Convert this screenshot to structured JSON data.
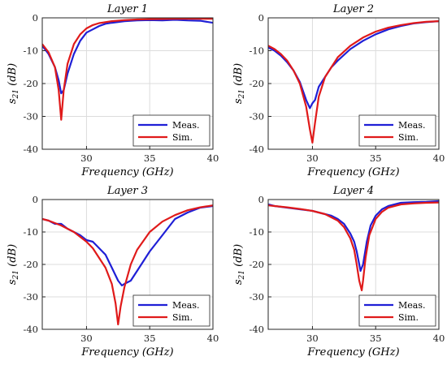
{
  "colors": {
    "meas": "#1f1fd6",
    "sim": "#e01a1a",
    "grid": "#dcdcdc",
    "axis": "#262626"
  },
  "chart_data": [
    {
      "type": "line",
      "title": "Layer 1",
      "xlabel": "Frequency (GHz)",
      "ylabel": "s21 (dB)",
      "xlim": [
        26.5,
        40
      ],
      "ylim": [
        -40,
        0
      ],
      "xticks": [
        30,
        35,
        40
      ],
      "yticks": [
        0,
        -10,
        -20,
        -30,
        -40
      ],
      "grid": true,
      "legend_position": "bottom-right",
      "series": [
        {
          "name": "Meas.",
          "x": [
            26.5,
            27,
            27.5,
            27.8,
            28,
            28.2,
            28.5,
            29,
            29.5,
            30,
            30.5,
            31,
            31.5,
            32,
            33,
            34,
            35,
            36,
            37,
            38,
            39,
            40
          ],
          "y": [
            -8.5,
            -11,
            -15,
            -19,
            -23,
            -22,
            -17,
            -11,
            -7,
            -4.5,
            -3.5,
            -2.5,
            -1.8,
            -1.5,
            -1,
            -0.8,
            -0.7,
            -0.8,
            -0.6,
            -0.8,
            -0.9,
            -1.5
          ]
        },
        {
          "name": "Sim.",
          "x": [
            26.5,
            27,
            27.5,
            27.8,
            28,
            28.2,
            28.5,
            29,
            29.5,
            30,
            30.5,
            31,
            32,
            33,
            34,
            35,
            36,
            37,
            38,
            39,
            40
          ],
          "y": [
            -8,
            -10.5,
            -15,
            -22,
            -31,
            -22,
            -14,
            -8,
            -5,
            -3.2,
            -2.2,
            -1.6,
            -1,
            -0.7,
            -0.5,
            -0.4,
            -0.35,
            -0.3,
            -0.3,
            -0.3,
            -0.3
          ]
        }
      ]
    },
    {
      "type": "line",
      "title": "Layer 2",
      "xlabel": "Frequency (GHz)",
      "ylabel": "s21 (dB)",
      "xlim": [
        26.5,
        40
      ],
      "ylim": [
        -40,
        0
      ],
      "xticks": [
        30,
        35,
        40
      ],
      "yticks": [
        0,
        -10,
        -20,
        -30,
        -40
      ],
      "grid": true,
      "legend_position": "bottom-right",
      "series": [
        {
          "name": "Meas.",
          "x": [
            26.5,
            27,
            27.5,
            28,
            28.5,
            29,
            29.5,
            29.8,
            30,
            30.2,
            30.5,
            31,
            31.5,
            32,
            33,
            34,
            35,
            36,
            37,
            38,
            39,
            40
          ],
          "y": [
            -9,
            -10,
            -11.5,
            -13.5,
            -16,
            -19.5,
            -25,
            -27.5,
            -26,
            -25,
            -21,
            -18,
            -15,
            -13,
            -9.5,
            -7,
            -5,
            -3.5,
            -2.5,
            -1.7,
            -1.3,
            -1
          ]
        },
        {
          "name": "Sim.",
          "x": [
            26.5,
            27,
            27.5,
            28,
            28.5,
            29,
            29.5,
            29.8,
            30,
            30.2,
            30.5,
            31,
            32,
            33,
            34,
            35,
            36,
            37,
            38,
            39,
            40
          ],
          "y": [
            -8.5,
            -9.5,
            -11,
            -13,
            -16,
            -20,
            -27,
            -34,
            -38,
            -32,
            -24,
            -18,
            -12,
            -8.5,
            -6,
            -4.2,
            -3,
            -2.2,
            -1.6,
            -1.2,
            -1
          ]
        }
      ]
    },
    {
      "type": "line",
      "title": "Layer 3",
      "xlabel": "Frequency (GHz)",
      "ylabel": "s21 (dB)",
      "xlim": [
        26.5,
        40
      ],
      "ylim": [
        -40,
        0
      ],
      "xticks": [
        30,
        35,
        40
      ],
      "yticks": [
        0,
        -10,
        -20,
        -30,
        -40
      ],
      "grid": true,
      "legend_position": "bottom-right",
      "series": [
        {
          "name": "Meas.",
          "x": [
            26.5,
            27,
            27.5,
            28,
            28.5,
            29,
            29.5,
            30,
            30.5,
            31,
            31.5,
            32,
            32.5,
            32.8,
            33,
            33.5,
            34,
            35,
            36,
            37,
            38,
            39,
            40
          ],
          "y": [
            -6,
            -6.5,
            -7.5,
            -7.5,
            -9,
            -10,
            -11,
            -12.5,
            -13,
            -15,
            -17,
            -21,
            -25,
            -26.5,
            -26,
            -25,
            -22,
            -16,
            -11,
            -6,
            -4,
            -2.5,
            -2
          ]
        },
        {
          "name": "Sim.",
          "x": [
            26.5,
            27,
            28,
            29,
            30,
            30.5,
            31,
            31.5,
            32,
            32.3,
            32.5,
            32.7,
            33,
            33.5,
            34,
            35,
            36,
            37,
            38,
            39,
            40
          ],
          "y": [
            -6,
            -6.5,
            -8,
            -10,
            -13,
            -15,
            -18,
            -21,
            -26,
            -32,
            -38.5,
            -33,
            -27,
            -20,
            -15.5,
            -10,
            -6.8,
            -4.8,
            -3.3,
            -2.4,
            -1.8
          ]
        }
      ]
    },
    {
      "type": "line",
      "title": "Layer 4",
      "xlabel": "Frequency (GHz)",
      "ylabel": "s21 (dB)",
      "xlim": [
        26.5,
        40
      ],
      "ylim": [
        -40,
        0
      ],
      "xticks": [
        30,
        35,
        40
      ],
      "yticks": [
        0,
        -10,
        -20,
        -30,
        -40
      ],
      "grid": true,
      "legend_position": "bottom-right",
      "series": [
        {
          "name": "Meas.",
          "x": [
            26.5,
            27,
            28,
            29,
            30,
            30.5,
            31,
            31.5,
            32,
            32.5,
            33,
            33.3,
            33.5,
            33.8,
            34,
            34.3,
            34.6,
            35,
            35.5,
            36,
            37,
            38,
            39,
            40
          ],
          "y": [
            -1.5,
            -2,
            -2.5,
            -3,
            -3.5,
            -4,
            -4.5,
            -5,
            -6,
            -7.5,
            -10.5,
            -13,
            -16,
            -22,
            -20,
            -13,
            -8,
            -5,
            -3,
            -2,
            -1,
            -0.8,
            -0.7,
            -0.5
          ]
        },
        {
          "name": "Sim.",
          "x": [
            26.5,
            27,
            28,
            29,
            30,
            31,
            32,
            32.5,
            33,
            33.3,
            33.5,
            33.7,
            33.9,
            34,
            34.2,
            34.5,
            35,
            35.5,
            36,
            37,
            38,
            39,
            40
          ],
          "y": [
            -1.8,
            -2,
            -2.4,
            -2.9,
            -3.5,
            -4.5,
            -6.5,
            -8.5,
            -12,
            -15.5,
            -20,
            -25,
            -28,
            -25,
            -18,
            -11,
            -6,
            -3.8,
            -2.5,
            -1.5,
            -1.2,
            -1,
            -0.9
          ]
        }
      ]
    }
  ]
}
